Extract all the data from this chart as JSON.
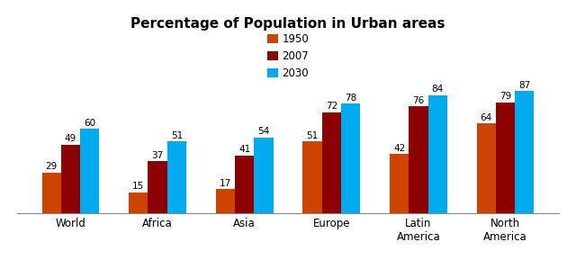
{
  "title": "Percentage of Population in Urban areas",
  "categories": [
    "World",
    "Africa",
    "Asia",
    "Europe",
    "Latin\nAmerica",
    "North\nAmerica"
  ],
  "series": {
    "1950": [
      29,
      15,
      17,
      51,
      42,
      64
    ],
    "2007": [
      49,
      37,
      41,
      72,
      76,
      79
    ],
    "2030": [
      60,
      51,
      54,
      78,
      84,
      87
    ]
  },
  "colors": {
    "1950": "#CC4400",
    "2007": "#8B0000",
    "2030": "#00AAEE"
  },
  "bar_width": 0.22,
  "ylim": [
    0,
    100
  ],
  "legend_labels": [
    "1950",
    "2007",
    "2030"
  ],
  "title_fontsize": 11,
  "label_fontsize": 7.5,
  "tick_fontsize": 8.5,
  "background_color": "#FFFFFF",
  "border_color": "#CCCCCC"
}
